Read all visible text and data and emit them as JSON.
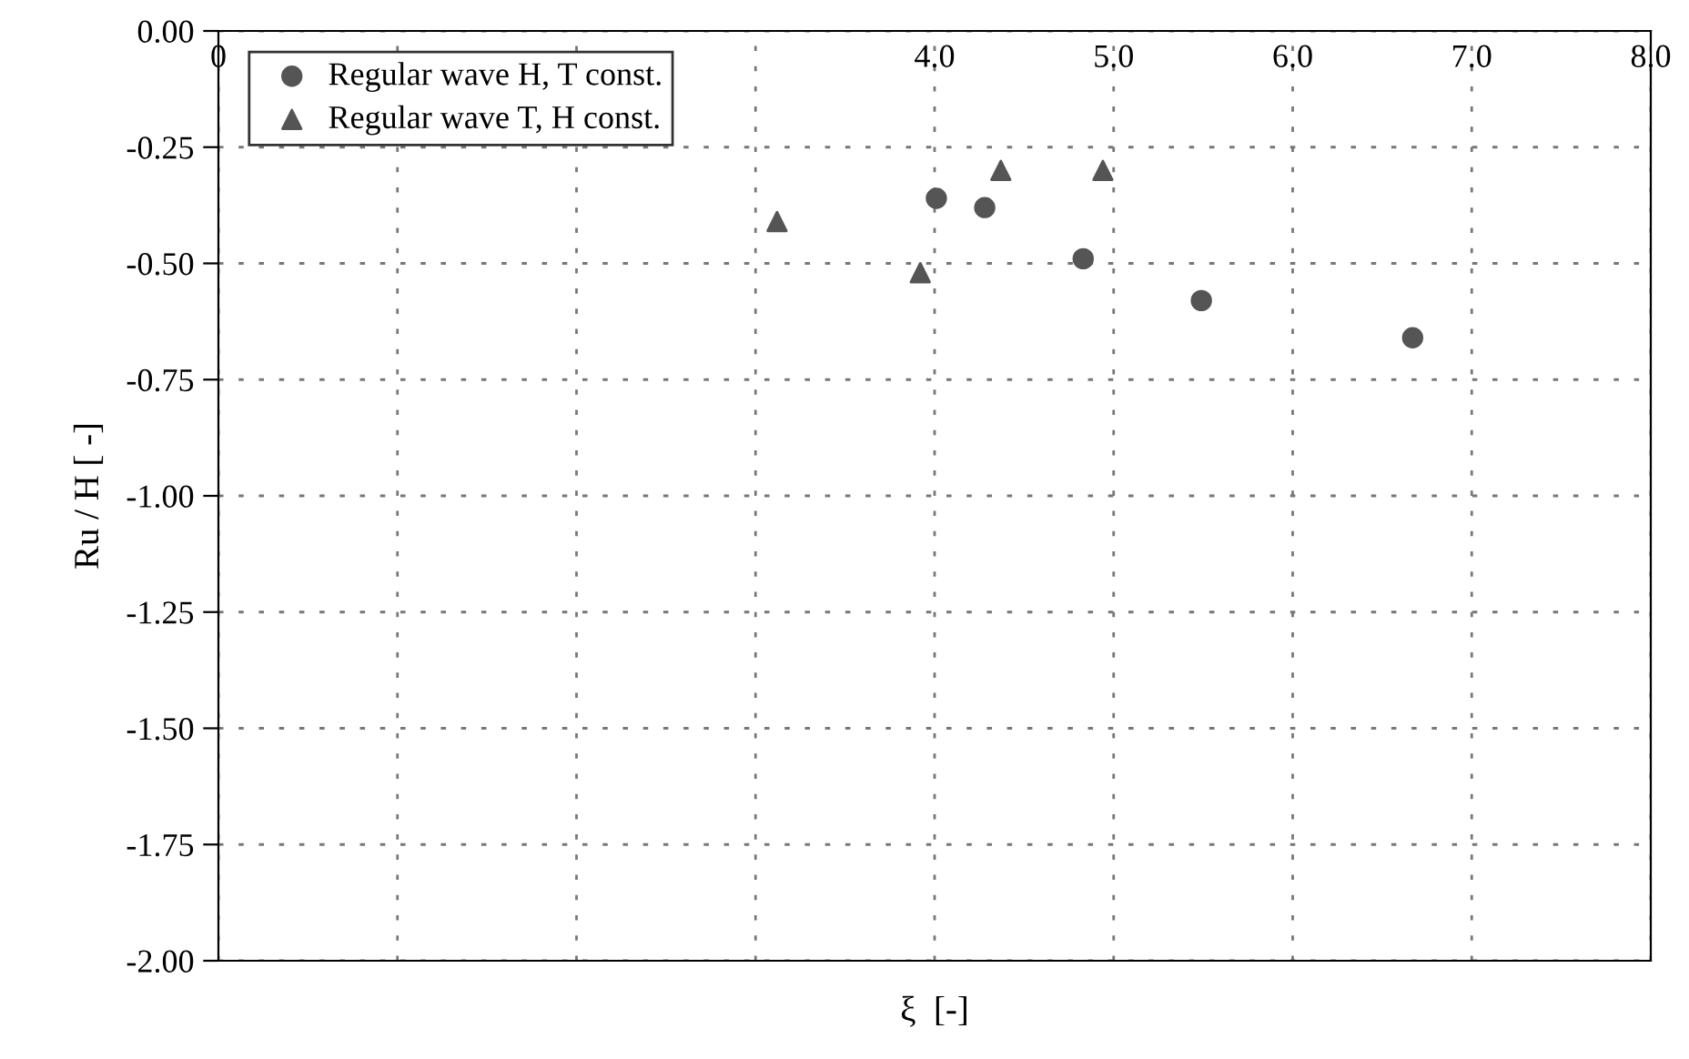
{
  "chart_data": {
    "type": "scatter",
    "xlabel": "ξ  [-]",
    "ylabel": "Ru / H [ -]",
    "series": [
      {
        "name": "Regular wave H, T const.",
        "color": "#555555",
        "marker": "circle",
        "x": [
          4.01,
          4.28,
          4.83,
          5.49,
          6.67
        ],
        "values": [
          -0.36,
          -0.38,
          -0.49,
          -0.58,
          -0.66
        ]
      },
      {
        "name": "Regular wave T, H const.",
        "color": "#555555",
        "marker": "triangle",
        "x": [
          3.12,
          3.92,
          4.37,
          4.94
        ],
        "values": [
          -0.41,
          -0.52,
          -0.3,
          -0.3
        ]
      }
    ],
    "xlim": [
      0,
      8
    ],
    "xticks": [
      0,
      {
        "value": 1,
        "label": null
      },
      {
        "value": 2,
        "label": null
      },
      {
        "value": 3,
        "label": null
      },
      {
        "value": 4,
        "label": "4.0"
      },
      {
        "value": 5,
        "label": "5.0"
      },
      {
        "value": 6,
        "label": "6.0"
      },
      {
        "value": 7,
        "label": "7.0"
      },
      {
        "value": 8,
        "label": "8.0"
      }
    ],
    "ylim": [
      -2,
      0
    ],
    "yticks": [
      {
        "value": 0,
        "label": "0.00"
      },
      {
        "value": -0.25,
        "label": "-0.25"
      },
      {
        "value": -0.5,
        "label": "-0.50"
      },
      {
        "value": -0.75,
        "label": "-0.75"
      },
      {
        "value": -1,
        "label": "-1.00"
      },
      {
        "value": -1.25,
        "label": "-1.25"
      },
      {
        "value": -1.5,
        "label": "-1.50"
      },
      {
        "value": -1.75,
        "label": "-1.75"
      },
      {
        "value": -2,
        "label": "-2.00"
      }
    ],
    "grid": true,
    "legend": "top left"
  }
}
